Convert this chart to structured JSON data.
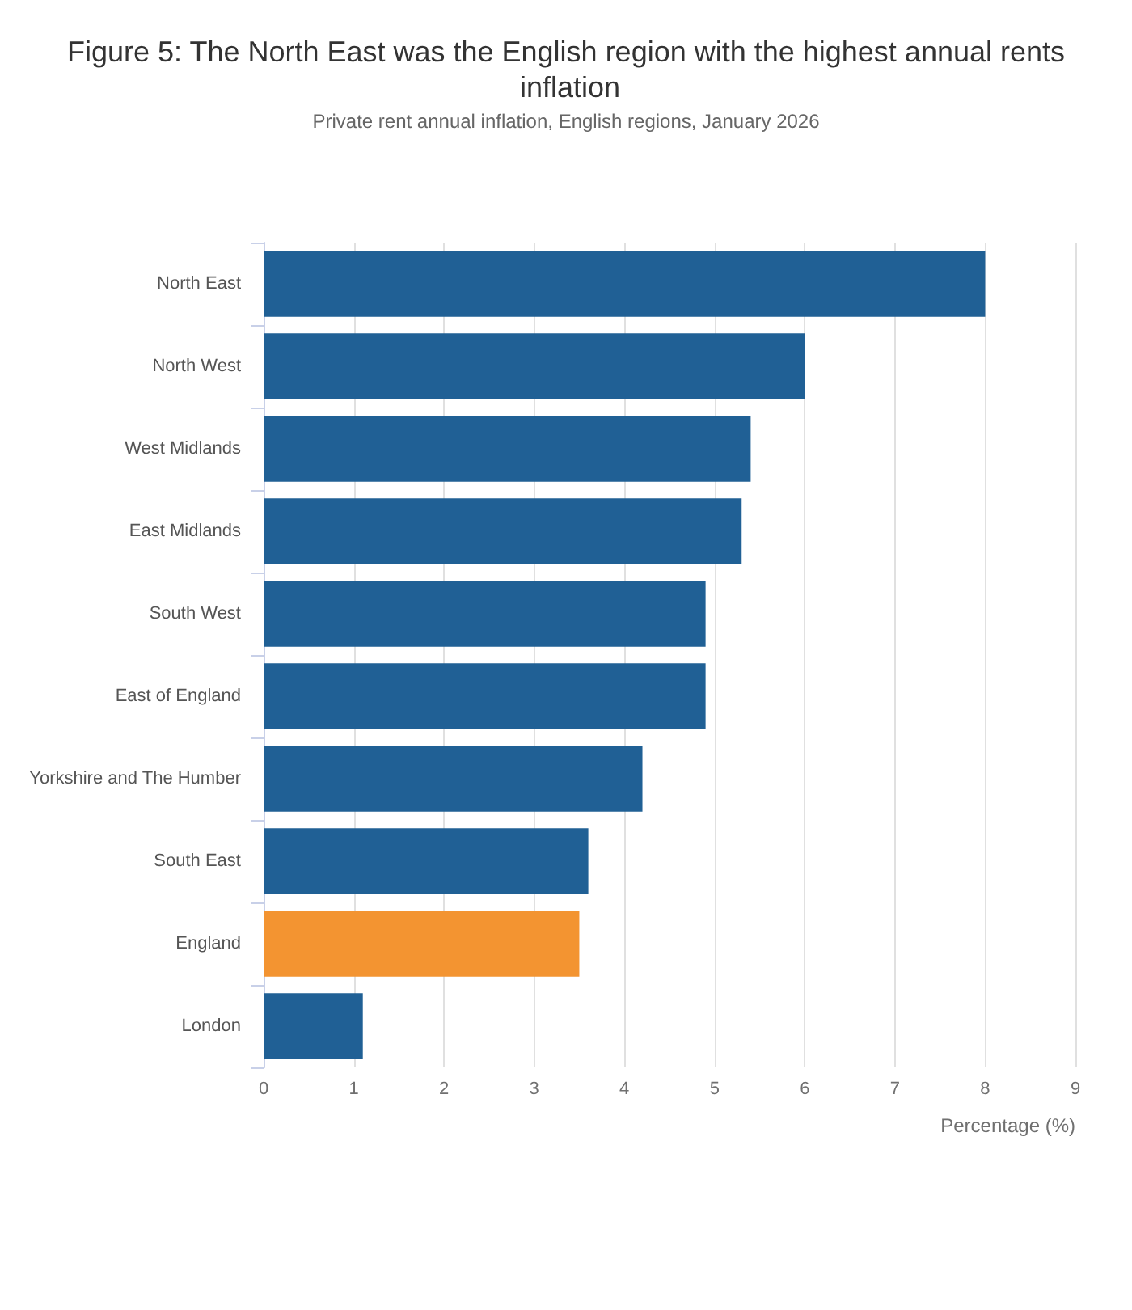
{
  "chart_data": {
    "type": "bar",
    "orientation": "horizontal",
    "title": "Figure 5: The North East was the English region with the highest annual rents inflation",
    "subtitle": "Private rent annual inflation, English regions, January 2026",
    "categories": [
      "North East",
      "North West",
      "West Midlands",
      "East Midlands",
      "South West",
      "East of England",
      "Yorkshire and The Humber",
      "South East",
      "England",
      "London"
    ],
    "values": [
      8.0,
      6.0,
      5.4,
      5.3,
      4.9,
      4.9,
      4.2,
      3.6,
      3.5,
      1.1
    ],
    "colors": [
      "#206095",
      "#206095",
      "#206095",
      "#206095",
      "#206095",
      "#206095",
      "#206095",
      "#206095",
      "#f39431",
      "#206095"
    ],
    "xlabel": "Percentage (%)",
    "xlim": [
      0,
      9
    ],
    "xticks": [
      0,
      1,
      2,
      3,
      4,
      5,
      6,
      7,
      8,
      9
    ],
    "grid": "x"
  }
}
